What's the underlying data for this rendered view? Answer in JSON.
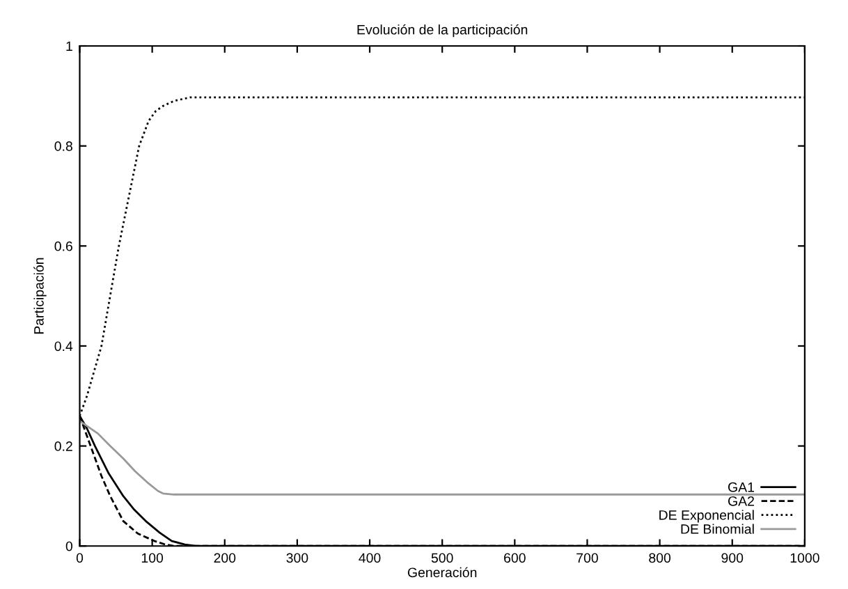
{
  "chart_data": {
    "type": "line",
    "title": "Evolución de la participación",
    "xlabel": "Generación",
    "ylabel": "Participación",
    "xlim": [
      0,
      1000
    ],
    "ylim": [
      0,
      1
    ],
    "xticks": [
      0,
      100,
      200,
      300,
      400,
      500,
      600,
      700,
      800,
      900,
      1000
    ],
    "yticks": [
      0,
      0.2,
      0.4,
      0.6,
      0.8,
      1
    ],
    "grid": false,
    "legend": "bottom right",
    "marker": "none",
    "series": [
      {
        "name": "GA1",
        "color": "#000000",
        "line_style": "solid",
        "x": [
          0,
          10,
          21,
          40,
          60,
          75,
          91,
          110,
          127,
          145,
          160,
          200,
          1000
        ],
        "values": [
          0.26,
          0.235,
          0.2,
          0.145,
          0.1,
          0.073,
          0.05,
          0.027,
          0.01,
          0.003,
          0.0,
          0.0,
          0.0
        ]
      },
      {
        "name": "GA2",
        "color": "#000000",
        "line_style": "dashed",
        "x": [
          0,
          10,
          20,
          30,
          42,
          60,
          80,
          103,
          118,
          130,
          200,
          1000
        ],
        "values": [
          0.26,
          0.22,
          0.18,
          0.14,
          0.1,
          0.05,
          0.025,
          0.01,
          0.003,
          0.0,
          0.0,
          0.0
        ]
      },
      {
        "name": "DE Exponencial",
        "color": "#000000",
        "line_style": "dotted",
        "x": [
          0,
          10,
          20,
          30,
          42,
          54,
          68,
          82,
          95,
          105,
          115,
          130,
          152,
          200,
          1000
        ],
        "values": [
          0.26,
          0.3,
          0.35,
          0.4,
          0.5,
          0.6,
          0.7,
          0.8,
          0.85,
          0.87,
          0.88,
          0.89,
          0.897,
          0.897,
          0.897
        ]
      },
      {
        "name": "DE Binomial",
        "color": "#999999",
        "line_style": "solid",
        "x": [
          0,
          10,
          25,
          42,
          60,
          76,
          95,
          108,
          115,
          130,
          1000
        ],
        "values": [
          0.25,
          0.24,
          0.225,
          0.2,
          0.175,
          0.15,
          0.125,
          0.11,
          0.105,
          0.103,
          0.103
        ]
      }
    ]
  }
}
